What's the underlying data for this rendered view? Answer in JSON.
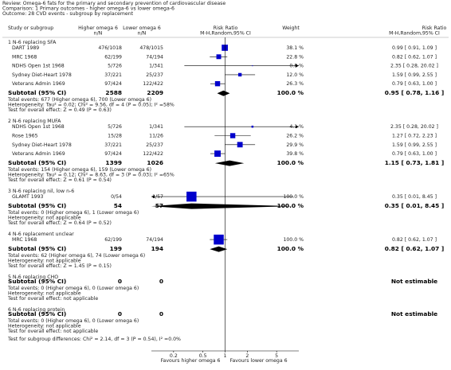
{
  "header": {
    "review": "Review:  Omega-6 fats for the primary and secondary prevention of cardiovascular disease",
    "comparison": "Comparison:  1 Primary outcomes - higher omega-6 vs lower omega-6",
    "outcome": "Outcome:  28 CVD events - subgroup by replacement"
  },
  "columns": {
    "study": "Study or subgroup",
    "higher": "Higher omega 6",
    "higher_unit": "n/N",
    "lower": "Lower omega 6",
    "lower_unit": "n/N",
    "rr": "Risk Ratio",
    "rr_method": "M-H,Random,95% CI",
    "weight": "Weight",
    "rr2": "Risk Ratio",
    "rr2_method": "M-H,Random,95% CI"
  },
  "chart_data": {
    "type": "forest",
    "xlim": [
      0.1,
      10
    ],
    "xticks": [
      0.2,
      0.5,
      1,
      2,
      5
    ],
    "log_scale": true,
    "color": "#0000cc",
    "x_label_left": "Favours higher omega 6",
    "x_label_right": "Favours lower omega 6"
  },
  "subgroups": [
    {
      "title": "1 N-6 replacing SFA",
      "studies": [
        {
          "name": "DART 1989",
          "higher": "476/1018",
          "lower": "478/1015",
          "weight": 38.1,
          "weight_label": "38.1 %",
          "rr": 0.99,
          "lo": 0.91,
          "hi": 1.09,
          "ci_label": "0.99 [ 0.91, 1.09 ]"
        },
        {
          "name": "MRC 1968",
          "higher": "62/199",
          "lower": "74/194",
          "weight": 22.8,
          "weight_label": "22.8 %",
          "rr": 0.82,
          "lo": 0.62,
          "hi": 1.07,
          "ci_label": "0.82 [ 0.62, 1.07 ]"
        },
        {
          "name": "NDHS Open 1st 1968",
          "higher": "5/726",
          "lower": "1/341",
          "weight": 0.8,
          "weight_label": "0.8 %",
          "rr": 2.35,
          "lo": 0.28,
          "hi": 20.02,
          "ci_label": "2.35 [ 0.28, 20.02 ]"
        },
        {
          "name": "Sydney Diet-Heart 1978",
          "higher": "37/221",
          "lower": "25/237",
          "weight": 12.0,
          "weight_label": "12.0 %",
          "rr": 1.59,
          "lo": 0.99,
          "hi": 2.55,
          "ci_label": "1.59 [ 0.99, 2.55 ]"
        },
        {
          "name": "Veterans Admin 1969",
          "higher": "97/424",
          "lower": "122/422",
          "weight": 26.3,
          "weight_label": "26.3 %",
          "rr": 0.79,
          "lo": 0.63,
          "hi": 1.0,
          "ci_label": "0.79 [ 0.63, 1.00 ]"
        }
      ],
      "subtotal": {
        "label": "Subtotal (95% CI)",
        "higher": 2588,
        "lower": 2209,
        "weight_label": "100.0 %",
        "rr": 0.95,
        "lo": 0.78,
        "hi": 1.16,
        "ci_label": "0.95 [ 0.78, 1.16 ]"
      },
      "notes": [
        "Total events: 677 (Higher omega 6), 700 (Lower omega 6)",
        "Heterogeneity: Tau² = 0.02; Chi² = 9.56, df = 4 (P = 0.05); I² =58%",
        "Test for overall effect: Z = 0.49 (P = 0.63)"
      ]
    },
    {
      "title": "2 N-6 replacing MUFA",
      "studies": [
        {
          "name": "NDHS Open 1st 1968",
          "higher": "5/726",
          "lower": "1/341",
          "weight": 4.1,
          "weight_label": "4.1 %",
          "rr": 2.35,
          "lo": 0.28,
          "hi": 20.02,
          "ci_label": "2.35 [ 0.28, 20.02 ]"
        },
        {
          "name": "Rose 1965",
          "higher": "15/28",
          "lower": "11/26",
          "weight": 26.2,
          "weight_label": "26.2 %",
          "rr": 1.27,
          "lo": 0.72,
          "hi": 2.23,
          "ci_label": "1.27 [ 0.72, 2.23 ]"
        },
        {
          "name": "Sydney Diet-Heart 1978",
          "higher": "37/221",
          "lower": "25/237",
          "weight": 29.9,
          "weight_label": "29.9 %",
          "rr": 1.59,
          "lo": 0.99,
          "hi": 2.55,
          "ci_label": "1.59 [ 0.99, 2.55 ]"
        },
        {
          "name": "Veterans Admin 1969",
          "higher": "97/424",
          "lower": "122/422",
          "weight": 39.8,
          "weight_label": "39.8 %",
          "rr": 0.79,
          "lo": 0.63,
          "hi": 1.0,
          "ci_label": "0.79 [ 0.63, 1.00 ]"
        }
      ],
      "subtotal": {
        "label": "Subtotal (95% CI)",
        "higher": 1399,
        "lower": 1026,
        "weight_label": "100.0 %",
        "rr": 1.15,
        "lo": 0.73,
        "hi": 1.81,
        "ci_label": "1.15 [ 0.73, 1.81 ]"
      },
      "notes": [
        "Total events: 154 (Higher omega 6), 159 (Lower omega 6)",
        "Heterogeneity: Tau² = 0.12; Chi² = 8.63, df = 3 (P = 0.03); I² =65%",
        "Test for overall effect: Z = 0.61 (P = 0.54)"
      ]
    },
    {
      "title": "3 N-6 replacing nil, low n-6",
      "studies": [
        {
          "name": "GLAMT 1993",
          "higher": "0/54",
          "lower": "1/57",
          "weight": 100.0,
          "weight_label": "100.0 %",
          "rr": 0.35,
          "lo": 0.01,
          "hi": 8.45,
          "ci_label": "0.35 [ 0.01, 8.45 ]"
        }
      ],
      "subtotal": {
        "label": "Subtotal (95% CI)",
        "higher": 54,
        "lower": 57,
        "weight_label": "100.0 %",
        "rr": 0.35,
        "lo": 0.01,
        "hi": 8.45,
        "ci_label": "0.35 [ 0.01, 8.45 ]"
      },
      "notes": [
        "Total events: 0 (Higher omega 6), 1 (Lower omega 6)",
        "Heterogeneity: not applicable",
        "Test for overall effect: Z = 0.64 (P = 0.52)"
      ]
    },
    {
      "title": "4 N-6 replacement unclear",
      "studies": [
        {
          "name": "MRC 1968",
          "higher": "62/199",
          "lower": "74/194",
          "weight": 100.0,
          "weight_label": "100.0 %",
          "rr": 0.82,
          "lo": 0.62,
          "hi": 1.07,
          "ci_label": "0.82 [ 0.62, 1.07 ]"
        }
      ],
      "subtotal": {
        "label": "Subtotal (95% CI)",
        "higher": 199,
        "lower": 194,
        "weight_label": "100.0 %",
        "rr": 0.82,
        "lo": 0.62,
        "hi": 1.07,
        "ci_label": "0.82 [ 0.62, 1.07 ]"
      },
      "notes": [
        "Total events: 62 (Higher omega 6), 74 (Lower omega 6)",
        "Heterogeneity: not applicable",
        "Test for overall effect: Z = 1.45 (P = 0.15)"
      ]
    },
    {
      "title": "5 N-6 replacing CHO",
      "studies": [],
      "subtotal": {
        "label": "Subtotal (95% CI)",
        "higher": 0,
        "lower": 0,
        "ci_label": "Not estimable"
      },
      "notes": [
        "Total events: 0 (Higher omega 6), 0 (Lower omega 6)",
        "Heterogeneity: not applicable",
        "Test for overall effect: not applicable"
      ]
    },
    {
      "title": "6 N-6 replacing protein",
      "studies": [],
      "subtotal": {
        "label": "Subtotal (95% CI)",
        "higher": 0,
        "lower": 0,
        "ci_label": "Not estimable"
      },
      "notes": [
        "Total events: 0 (Higher omega 6), 0 (Lower omega 6)",
        "Heterogeneity: not applicable",
        "Test for overall effect: not applicable"
      ]
    }
  ],
  "test_subgroups": "Test for subgroup differences: Chi² = 2.14, df = 3 (P = 0.54), I² =0.0%"
}
